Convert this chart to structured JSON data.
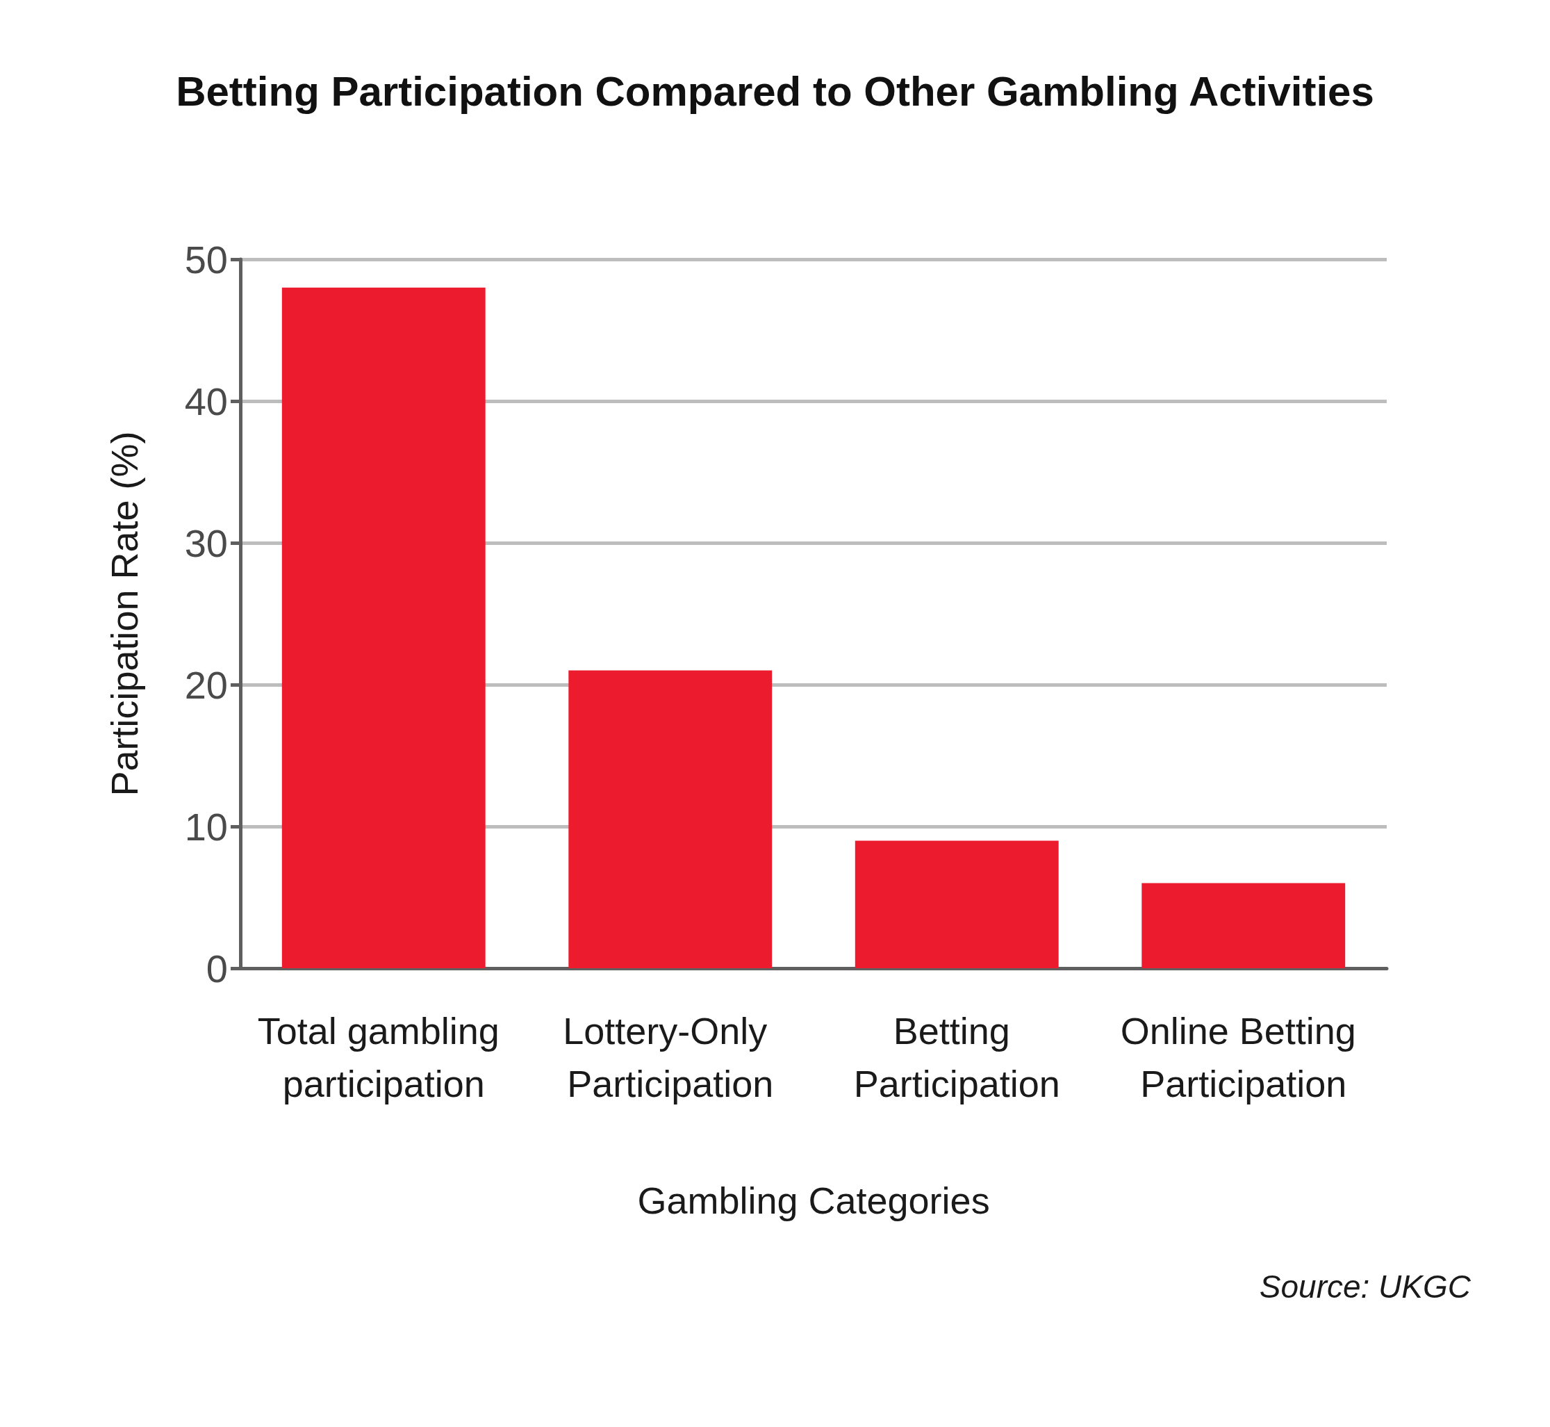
{
  "chart_data": {
    "type": "bar",
    "title": "Betting Participation Compared to Other Gambling Activities",
    "xlabel": "Gambling Categories",
    "ylabel": "Participation Rate (%)",
    "categories": [
      "Total gambling participation",
      "Lottery-Only Participation",
      "Betting Participation",
      "Online Betting Participation"
    ],
    "values": [
      48,
      21,
      9,
      6
    ],
    "color": "#ec1c2e",
    "ylim": [
      0,
      50
    ],
    "yticks": [
      0,
      10,
      20,
      30,
      40,
      50
    ],
    "grid": "y",
    "annotations": [
      "Source: UKGC"
    ]
  }
}
